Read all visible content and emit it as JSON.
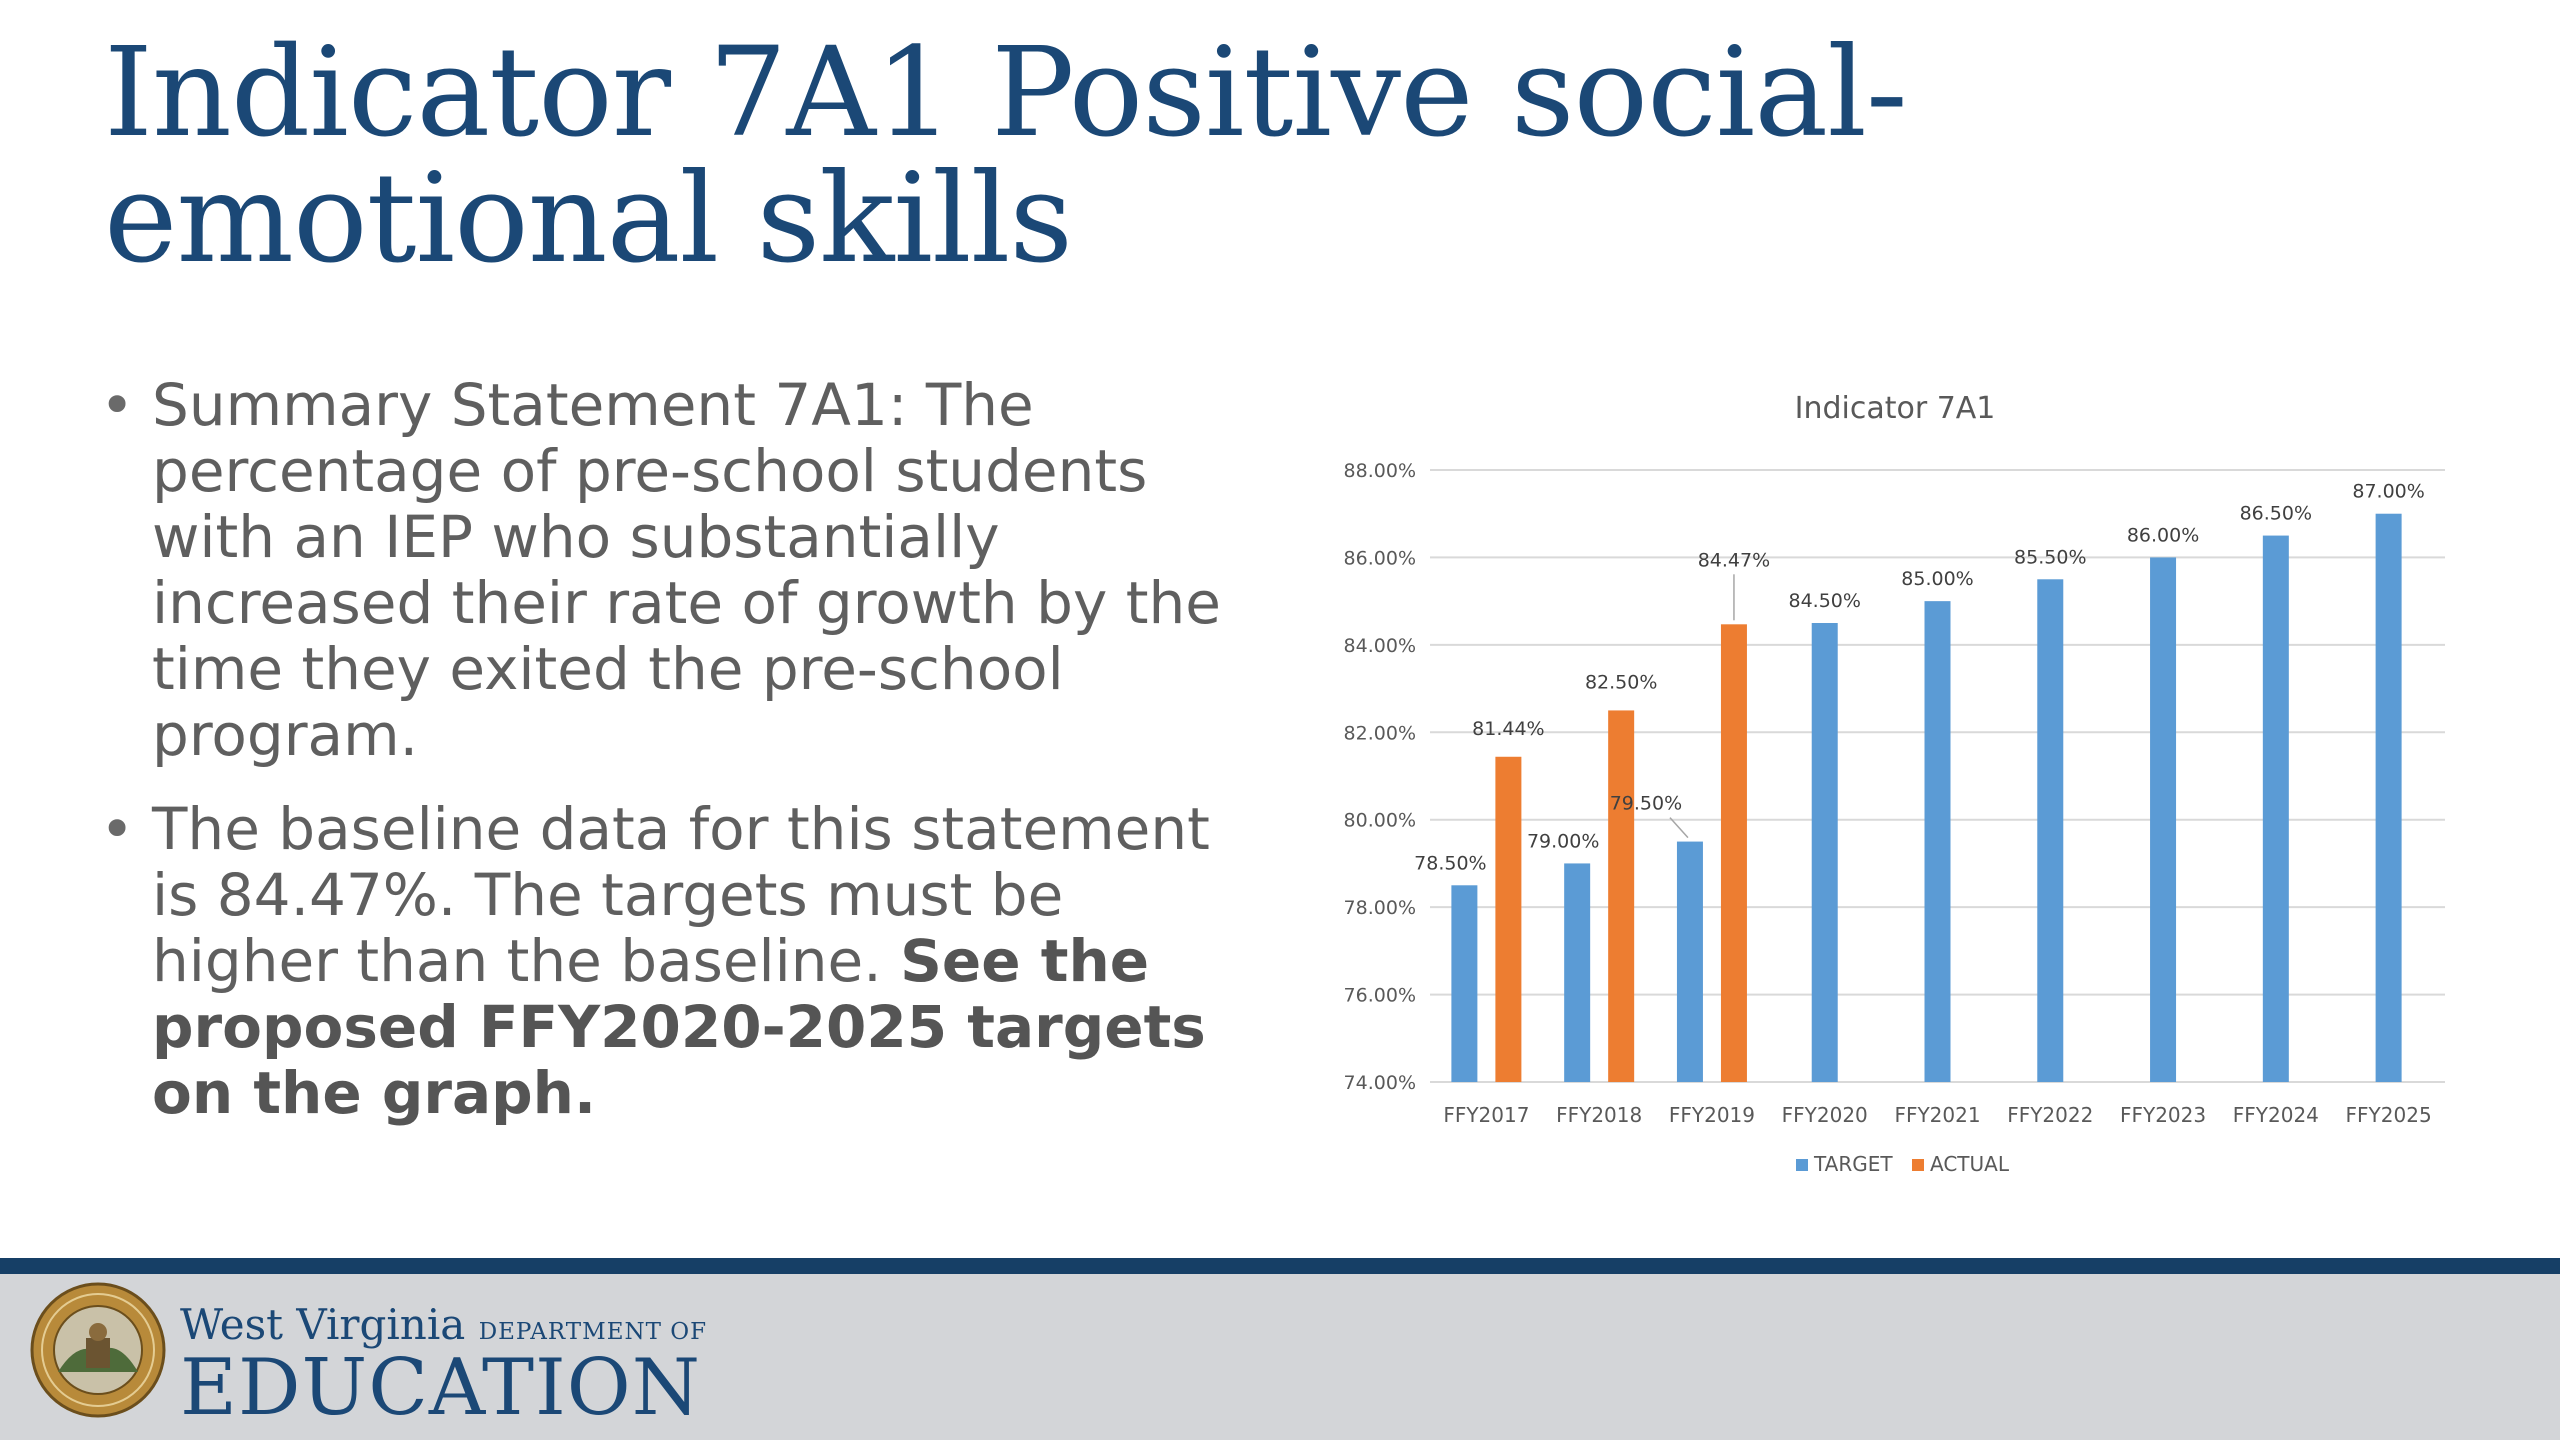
{
  "slide": {
    "title": "Indicator 7A1 Positive social-emotional skills",
    "bullets": [
      "Summary Statement 7A1: The percentage of pre-school students with an IEP who substantially increased their rate of growth by the time they exited the pre-school program.",
      "The baseline data for this statement is 84.47%.  The targets must be higher than the baseline."
    ],
    "bullet_emphasis": "See the proposed FFY2020-2025 targets on the graph."
  },
  "chart_data": {
    "type": "bar",
    "title": "Indicator 7A1",
    "categories": [
      "FFY2017",
      "FFY2018",
      "FFY2019",
      "FFY2020",
      "FFY2021",
      "FFY2022",
      "FFY2023",
      "FFY2024",
      "FFY2025"
    ],
    "series": [
      {
        "name": "TARGET",
        "color": "#5b9bd5",
        "values": [
          78.5,
          79.0,
          79.5,
          84.5,
          85.0,
          85.5,
          86.0,
          86.5,
          87.0
        ],
        "labels": [
          "78.50%",
          "79.00%",
          "79.50%",
          "84.50%",
          "85.00%",
          "85.50%",
          "86.00%",
          "86.50%",
          "87.00%"
        ]
      },
      {
        "name": "ACTUAL",
        "color": "#ed7d31",
        "values": [
          81.44,
          82.5,
          84.47,
          null,
          null,
          null,
          null,
          null,
          null
        ],
        "labels": [
          "81.44%",
          "82.50%",
          "84.47%",
          null,
          null,
          null,
          null,
          null,
          null
        ]
      }
    ],
    "ylim": [
      74,
      88
    ],
    "yticks": [
      "74.00%",
      "76.00%",
      "78.00%",
      "80.00%",
      "82.00%",
      "84.00%",
      "86.00%",
      "88.00%"
    ],
    "ytick_values": [
      74,
      76,
      78,
      80,
      82,
      84,
      86,
      88
    ],
    "grid": true,
    "legend": "bottom-center"
  },
  "footer": {
    "seal_text": "STATE OF WEST VIRGINIA",
    "org_name": "West Virginia",
    "org_dept": "DEPARTMENT OF",
    "org_main": "EDUCATION",
    "colors": {
      "brand": "#1b4876",
      "footer_bg": "#d3d5d8"
    }
  }
}
